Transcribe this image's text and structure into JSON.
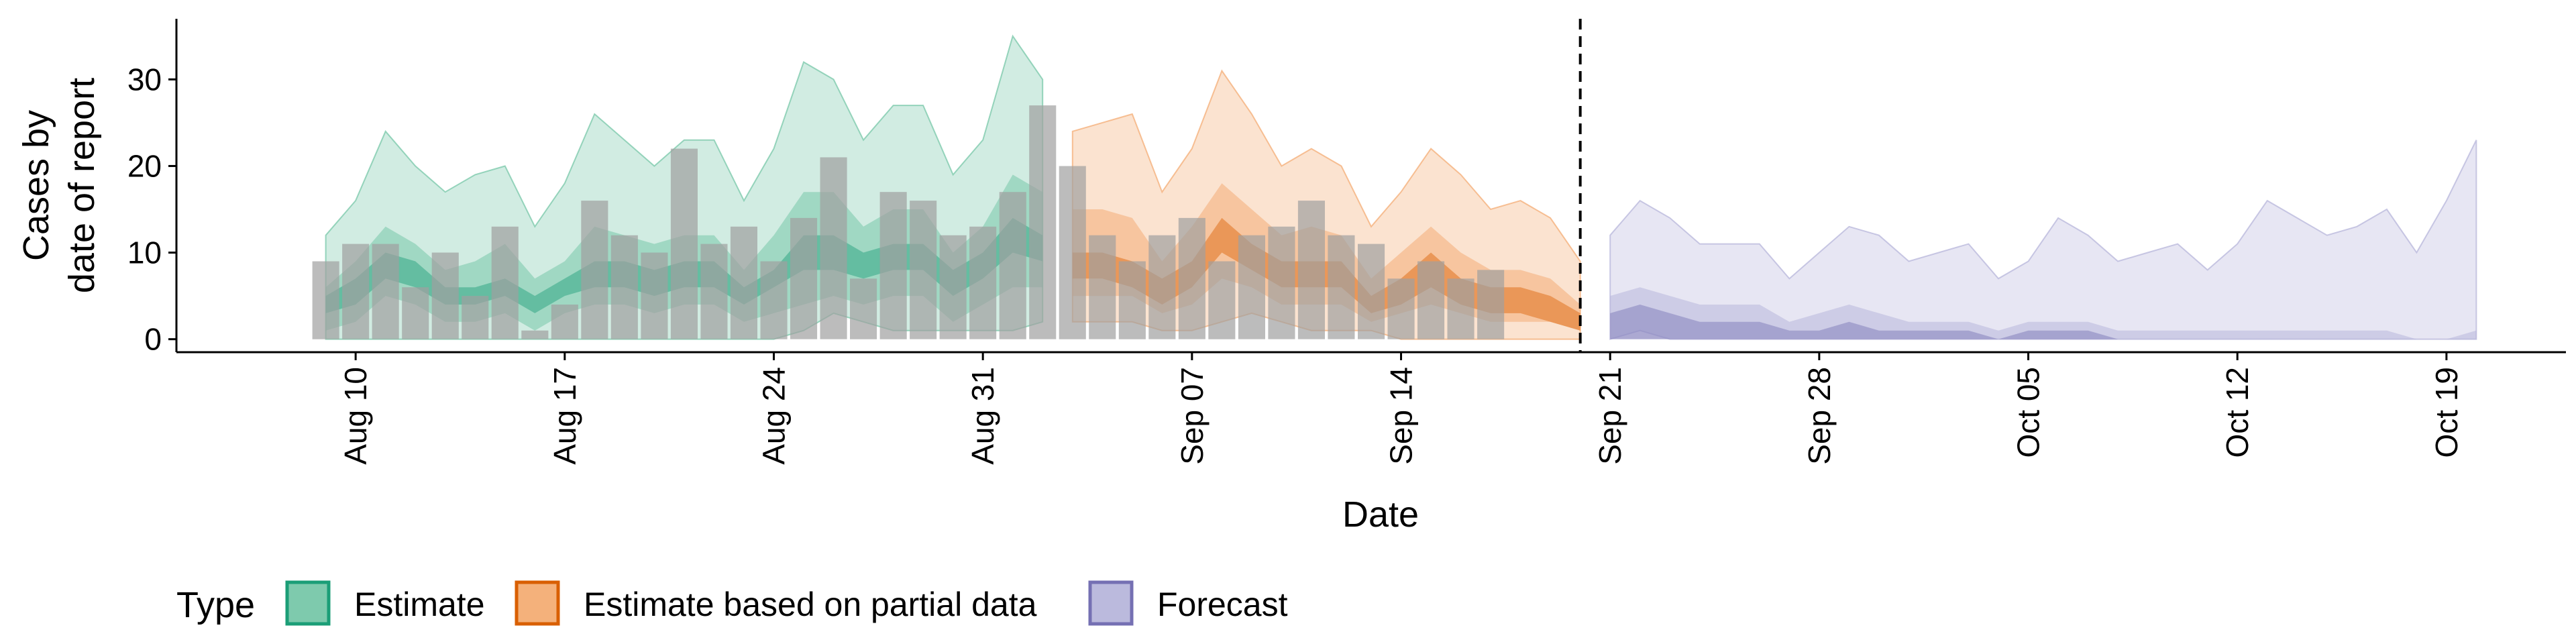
{
  "chart_data": {
    "type": "area",
    "title": "",
    "xlabel": "Date",
    "ylabel_lines": [
      "Cases by",
      "date of report"
    ],
    "ylim": [
      -1.5,
      37
    ],
    "yticks": [
      0,
      10,
      20,
      30
    ],
    "grid": false,
    "legend_position": "bottom-left",
    "forecast_cutoff": "2020-09-20",
    "x_ticks": [
      {
        "date": "2020-08-10",
        "label": "Aug 10"
      },
      {
        "date": "2020-08-17",
        "label": "Aug 17"
      },
      {
        "date": "2020-08-24",
        "label": "Aug 24"
      },
      {
        "date": "2020-08-31",
        "label": "Aug 31"
      },
      {
        "date": "2020-09-07",
        "label": "Sep 07"
      },
      {
        "date": "2020-09-14",
        "label": "Sep 14"
      },
      {
        "date": "2020-09-21",
        "label": "Sep 21"
      },
      {
        "date": "2020-09-28",
        "label": "Sep 28"
      },
      {
        "date": "2020-10-05",
        "label": "Oct 05"
      },
      {
        "date": "2020-10-12",
        "label": "Oct 12"
      },
      {
        "date": "2020-10-19",
        "label": "Oct 19"
      }
    ],
    "x_range": [
      "2020-08-04",
      "2020-10-23"
    ],
    "reported_cases": {
      "start": "2020-08-09",
      "color": "#a0a0a0",
      "values": [
        9,
        11,
        11,
        6,
        10,
        5,
        13,
        1,
        4,
        16,
        12,
        10,
        22,
        11,
        13,
        9,
        14,
        21,
        7,
        17,
        16,
        12,
        13,
        17,
        27,
        20,
        12,
        9,
        12,
        14,
        9,
        12,
        13,
        16,
        12,
        11,
        7,
        9,
        7,
        8
      ]
    },
    "legend_title": "Type",
    "series": [
      {
        "name": "Estimate",
        "fill": "#70c4a4",
        "line": "#1b9e77",
        "start": "2020-08-09",
        "outer_low": [
          0,
          0,
          0,
          0,
          0,
          0,
          0,
          0,
          0,
          0,
          0,
          0,
          0,
          0,
          0,
          0,
          1,
          3,
          2,
          1,
          1,
          1,
          1,
          1,
          2
        ],
        "outer_high": [
          12,
          16,
          24,
          20,
          17,
          19,
          20,
          13,
          18,
          26,
          23,
          20,
          23,
          23,
          16,
          22,
          32,
          30,
          23,
          27,
          27,
          19,
          23,
          35,
          30
        ],
        "mid_low": [
          1,
          2,
          5,
          4,
          2,
          2,
          3,
          1,
          3,
          4,
          4,
          3,
          4,
          4,
          2,
          3,
          4,
          5,
          4,
          5,
          5,
          2,
          4,
          6,
          6
        ],
        "mid_high": [
          6,
          9,
          13,
          11,
          8,
          9,
          11,
          7,
          9,
          13,
          12,
          11,
          12,
          12,
          8,
          12,
          17,
          17,
          13,
          15,
          15,
          10,
          13,
          19,
          17
        ],
        "inner_low": [
          3,
          4,
          7,
          6,
          4,
          4,
          5,
          3,
          5,
          6,
          6,
          5,
          6,
          6,
          4,
          6,
          8,
          8,
          7,
          8,
          8,
          5,
          7,
          10,
          9
        ],
        "inner_high": [
          5,
          7,
          10,
          9,
          6,
          6,
          7,
          5,
          7,
          9,
          9,
          8,
          9,
          9,
          6,
          8,
          12,
          12,
          10,
          11,
          11,
          8,
          10,
          14,
          12
        ],
        "median": [
          4,
          5,
          8,
          7,
          5,
          5,
          6,
          4,
          6,
          8,
          8,
          7,
          8,
          8,
          5,
          7,
          10,
          10,
          8,
          9,
          9,
          6,
          8,
          12,
          10
        ]
      },
      {
        "name": "Estimate based on partial data",
        "fill": "#f3a86d",
        "line": "#d95f02",
        "start": "2020-09-03",
        "outer_low": [
          2,
          2,
          2,
          1,
          1,
          2,
          3,
          2,
          1,
          1,
          1,
          0,
          0,
          0,
          0,
          0,
          0,
          0
        ],
        "outer_high": [
          24,
          25,
          26,
          17,
          22,
          31,
          26,
          20,
          22,
          20,
          13,
          17,
          22,
          19,
          15,
          16,
          14,
          9
        ],
        "mid_low": [
          5,
          5,
          5,
          3,
          4,
          7,
          6,
          4,
          4,
          4,
          2,
          3,
          4,
          3,
          2,
          2,
          2,
          1
        ],
        "mid_high": [
          15,
          15,
          14,
          9,
          13,
          18,
          15,
          12,
          13,
          12,
          7,
          10,
          13,
          10,
          8,
          8,
          7,
          4
        ],
        "inner_low": [
          7,
          7,
          6,
          4,
          6,
          10,
          8,
          6,
          6,
          6,
          3,
          4,
          6,
          4,
          3,
          3,
          2,
          1
        ],
        "inner_high": [
          10,
          10,
          9,
          7,
          9,
          14,
          11,
          9,
          9,
          9,
          5,
          7,
          10,
          7,
          6,
          6,
          5,
          3
        ],
        "median": [
          8,
          8,
          7,
          5,
          7,
          12,
          9,
          7,
          7,
          7,
          2,
          6,
          9,
          5,
          4,
          4,
          3,
          2
        ]
      },
      {
        "name": "Forecast",
        "fill": "#b4b2d9",
        "line": "#7570b3",
        "start": "2020-09-21",
        "outer_low": [
          0,
          1,
          0,
          0,
          0,
          0,
          0,
          0,
          0,
          0,
          0,
          0,
          0,
          0,
          0,
          0,
          0,
          0,
          0,
          0,
          0,
          0,
          0,
          0,
          0,
          0,
          0,
          0,
          0,
          0
        ],
        "outer_high": [
          12,
          16,
          14,
          11,
          11,
          11,
          7,
          10,
          13,
          12,
          9,
          10,
          11,
          7,
          9,
          14,
          12,
          9,
          10,
          11,
          8,
          11,
          16,
          14,
          12,
          13,
          15,
          10,
          16,
          23
        ],
        "mid_low": [
          0,
          0,
          0,
          0,
          0,
          0,
          0,
          0,
          0,
          0,
          0,
          0,
          0,
          0,
          0,
          0,
          0,
          0,
          0,
          0,
          0,
          0,
          0,
          0,
          0,
          0,
          0,
          0,
          0,
          0
        ],
        "mid_high": [
          5,
          6,
          5,
          4,
          4,
          4,
          2,
          3,
          4,
          3,
          2,
          2,
          2,
          1,
          2,
          2,
          2,
          1,
          1,
          1,
          1,
          1,
          1,
          1,
          1,
          1,
          1,
          0,
          0,
          1
        ],
        "inner_low": [
          0,
          0,
          0,
          0,
          0,
          0,
          0,
          0,
          0,
          0,
          0,
          0,
          0,
          0,
          0,
          0,
          0,
          0,
          0,
          0,
          0,
          0,
          0,
          0,
          0,
          0,
          0,
          0,
          0,
          0
        ],
        "inner_high": [
          3,
          4,
          3,
          2,
          2,
          2,
          1,
          1,
          2,
          1,
          1,
          1,
          1,
          0,
          1,
          1,
          1,
          0,
          0,
          0,
          0,
          0,
          0,
          0,
          0,
          0,
          0,
          0,
          0,
          0
        ],
        "median": [
          2,
          2,
          2,
          1,
          1,
          1,
          0,
          0,
          1,
          0,
          0,
          0,
          0,
          0,
          0,
          0,
          0,
          0,
          0,
          0,
          0,
          0,
          0,
          0,
          0,
          0,
          0,
          0,
          0,
          0
        ]
      }
    ]
  }
}
